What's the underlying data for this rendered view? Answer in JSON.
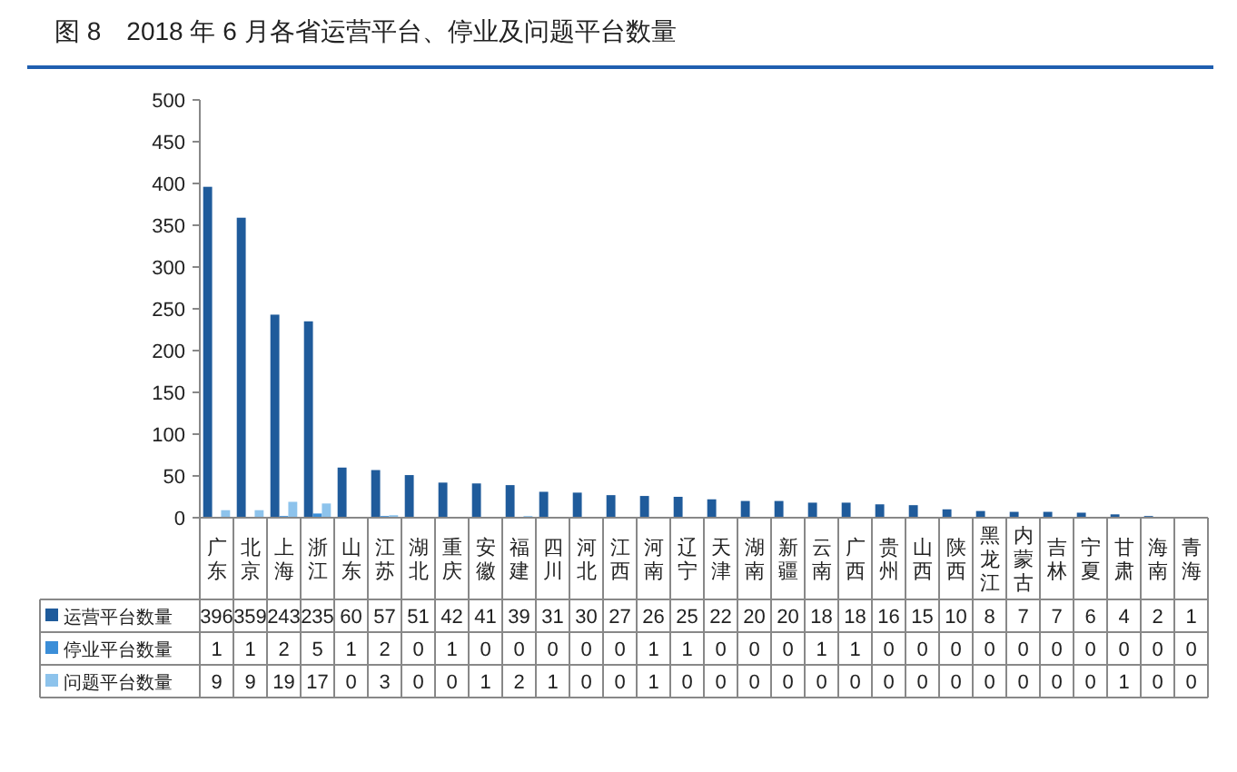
{
  "chart_data": {
    "type": "bar",
    "title": "图 8　2018 年 6 月各省运营平台、停业及问题平台数量",
    "categories": [
      "广东",
      "北京",
      "上海",
      "浙江",
      "山东",
      "江苏",
      "湖北",
      "重庆",
      "安徽",
      "福建",
      "四川",
      "河北",
      "江西",
      "河南",
      "辽宁",
      "天津",
      "湖南",
      "新疆",
      "云南",
      "广西",
      "贵州",
      "山西",
      "陕西",
      "黑龙江",
      "内蒙古",
      "吉林",
      "宁夏",
      "甘肃",
      "海南",
      "青海"
    ],
    "series": [
      {
        "name": "运营平台数量",
        "color": "#1f5b9b",
        "values": [
          396,
          359,
          243,
          235,
          60,
          57,
          51,
          42,
          41,
          39,
          31,
          30,
          27,
          26,
          25,
          22,
          20,
          20,
          18,
          18,
          16,
          15,
          10,
          8,
          7,
          7,
          6,
          4,
          2,
          1
        ]
      },
      {
        "name": "停业平台数量",
        "color": "#3b8ed8",
        "values": [
          1,
          1,
          2,
          5,
          1,
          2,
          0,
          1,
          0,
          0,
          0,
          0,
          0,
          1,
          1,
          0,
          0,
          0,
          1,
          1,
          0,
          0,
          0,
          0,
          0,
          0,
          0,
          0,
          0,
          0
        ]
      },
      {
        "name": "问题平台数量",
        "color": "#8dc3ec",
        "values": [
          9,
          9,
          19,
          17,
          0,
          3,
          0,
          0,
          1,
          2,
          1,
          0,
          0,
          1,
          0,
          0,
          0,
          0,
          0,
          0,
          0,
          0,
          0,
          0,
          0,
          0,
          0,
          1,
          0,
          0
        ]
      }
    ],
    "ylim": [
      0,
      500
    ],
    "yticks": [
      0,
      50,
      100,
      150,
      200,
      250,
      300,
      350,
      400,
      450,
      500
    ],
    "data_labels": true,
    "legend": "bottom left",
    "grid": false
  }
}
